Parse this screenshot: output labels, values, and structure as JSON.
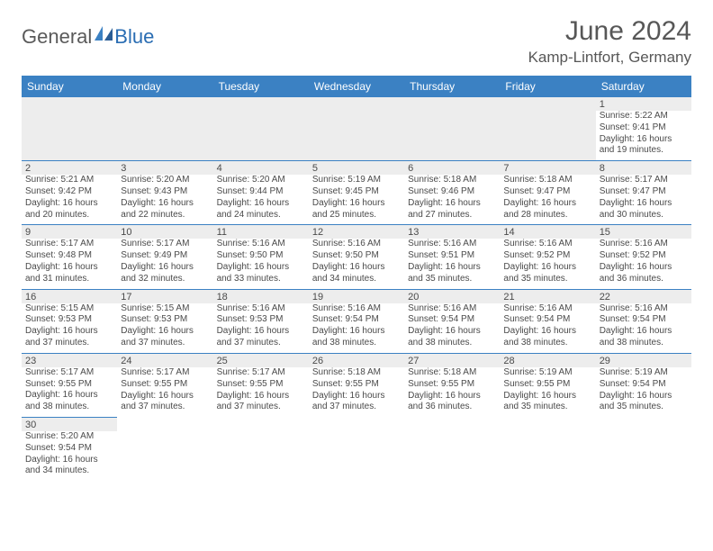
{
  "logo": {
    "text1": "General",
    "text2": "Blue"
  },
  "title": "June 2024",
  "location": "Kamp-Lintfort, Germany",
  "colors": {
    "header_bg": "#3b81c3",
    "header_text": "#ffffff",
    "shade_bg": "#ededed",
    "text": "#4a4a4a",
    "rule": "#3b81c3"
  },
  "day_labels": [
    "Sunday",
    "Monday",
    "Tuesday",
    "Wednesday",
    "Thursday",
    "Friday",
    "Saturday"
  ],
  "weeks": [
    [
      null,
      null,
      null,
      null,
      null,
      null,
      {
        "n": "1",
        "sr": "5:22 AM",
        "ss": "9:41 PM",
        "dl": "16 hours and 19 minutes."
      }
    ],
    [
      {
        "n": "2",
        "sr": "5:21 AM",
        "ss": "9:42 PM",
        "dl": "16 hours and 20 minutes."
      },
      {
        "n": "3",
        "sr": "5:20 AM",
        "ss": "9:43 PM",
        "dl": "16 hours and 22 minutes."
      },
      {
        "n": "4",
        "sr": "5:20 AM",
        "ss": "9:44 PM",
        "dl": "16 hours and 24 minutes."
      },
      {
        "n": "5",
        "sr": "5:19 AM",
        "ss": "9:45 PM",
        "dl": "16 hours and 25 minutes."
      },
      {
        "n": "6",
        "sr": "5:18 AM",
        "ss": "9:46 PM",
        "dl": "16 hours and 27 minutes."
      },
      {
        "n": "7",
        "sr": "5:18 AM",
        "ss": "9:47 PM",
        "dl": "16 hours and 28 minutes."
      },
      {
        "n": "8",
        "sr": "5:17 AM",
        "ss": "9:47 PM",
        "dl": "16 hours and 30 minutes."
      }
    ],
    [
      {
        "n": "9",
        "sr": "5:17 AM",
        "ss": "9:48 PM",
        "dl": "16 hours and 31 minutes."
      },
      {
        "n": "10",
        "sr": "5:17 AM",
        "ss": "9:49 PM",
        "dl": "16 hours and 32 minutes."
      },
      {
        "n": "11",
        "sr": "5:16 AM",
        "ss": "9:50 PM",
        "dl": "16 hours and 33 minutes."
      },
      {
        "n": "12",
        "sr": "5:16 AM",
        "ss": "9:50 PM",
        "dl": "16 hours and 34 minutes."
      },
      {
        "n": "13",
        "sr": "5:16 AM",
        "ss": "9:51 PM",
        "dl": "16 hours and 35 minutes."
      },
      {
        "n": "14",
        "sr": "5:16 AM",
        "ss": "9:52 PM",
        "dl": "16 hours and 35 minutes."
      },
      {
        "n": "15",
        "sr": "5:16 AM",
        "ss": "9:52 PM",
        "dl": "16 hours and 36 minutes."
      }
    ],
    [
      {
        "n": "16",
        "sr": "5:15 AM",
        "ss": "9:53 PM",
        "dl": "16 hours and 37 minutes."
      },
      {
        "n": "17",
        "sr": "5:15 AM",
        "ss": "9:53 PM",
        "dl": "16 hours and 37 minutes."
      },
      {
        "n": "18",
        "sr": "5:16 AM",
        "ss": "9:53 PM",
        "dl": "16 hours and 37 minutes."
      },
      {
        "n": "19",
        "sr": "5:16 AM",
        "ss": "9:54 PM",
        "dl": "16 hours and 38 minutes."
      },
      {
        "n": "20",
        "sr": "5:16 AM",
        "ss": "9:54 PM",
        "dl": "16 hours and 38 minutes."
      },
      {
        "n": "21",
        "sr": "5:16 AM",
        "ss": "9:54 PM",
        "dl": "16 hours and 38 minutes."
      },
      {
        "n": "22",
        "sr": "5:16 AM",
        "ss": "9:54 PM",
        "dl": "16 hours and 38 minutes."
      }
    ],
    [
      {
        "n": "23",
        "sr": "5:17 AM",
        "ss": "9:55 PM",
        "dl": "16 hours and 38 minutes."
      },
      {
        "n": "24",
        "sr": "5:17 AM",
        "ss": "9:55 PM",
        "dl": "16 hours and 37 minutes."
      },
      {
        "n": "25",
        "sr": "5:17 AM",
        "ss": "9:55 PM",
        "dl": "16 hours and 37 minutes."
      },
      {
        "n": "26",
        "sr": "5:18 AM",
        "ss": "9:55 PM",
        "dl": "16 hours and 37 minutes."
      },
      {
        "n": "27",
        "sr": "5:18 AM",
        "ss": "9:55 PM",
        "dl": "16 hours and 36 minutes."
      },
      {
        "n": "28",
        "sr": "5:19 AM",
        "ss": "9:55 PM",
        "dl": "16 hours and 35 minutes."
      },
      {
        "n": "29",
        "sr": "5:19 AM",
        "ss": "9:54 PM",
        "dl": "16 hours and 35 minutes."
      }
    ],
    [
      {
        "n": "30",
        "sr": "5:20 AM",
        "ss": "9:54 PM",
        "dl": "16 hours and 34 minutes."
      },
      null,
      null,
      null,
      null,
      null,
      null
    ]
  ],
  "labels": {
    "sunrise": "Sunrise:",
    "sunset": "Sunset:",
    "daylight": "Daylight:"
  }
}
